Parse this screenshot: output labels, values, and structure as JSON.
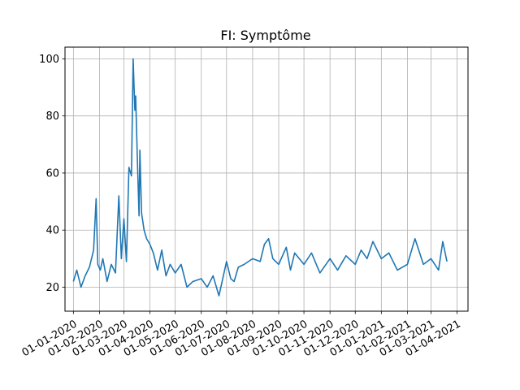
{
  "chart_data": {
    "type": "line",
    "title": "FI: Symptôme",
    "xlabel": "",
    "ylabel": "",
    "grid": true,
    "line_color": "#1f77b4",
    "x_ticks": [
      "01-01-2020",
      "01-02-2020",
      "01-03-2020",
      "01-04-2020",
      "01-05-2020",
      "01-06-2020",
      "01-07-2020",
      "01-08-2020",
      "01-09-2020",
      "01-10-2020",
      "01-11-2020",
      "01-12-2020",
      "01-01-2021",
      "01-02-2021",
      "01-03-2021",
      "01-04-2021"
    ],
    "y_ticks": [
      20,
      40,
      60,
      80,
      100
    ],
    "xlim": [
      "2019-12-22",
      "2021-04-14"
    ],
    "ylim": [
      11.6,
      104.1
    ],
    "series": [
      {
        "x": [
          "2020-01-01",
          "2020-01-05",
          "2020-01-10",
          "2020-01-15",
          "2020-01-20",
          "2020-01-25",
          "2020-01-28",
          "2020-01-30",
          "2020-02-02",
          "2020-02-05",
          "2020-02-10",
          "2020-02-15",
          "2020-02-20",
          "2020-02-24",
          "2020-02-27",
          "2020-03-01",
          "2020-03-04",
          "2020-03-07",
          "2020-03-10",
          "2020-03-12",
          "2020-03-14",
          "2020-03-15",
          "2020-03-17",
          "2020-03-19",
          "2020-03-20",
          "2020-03-22",
          "2020-03-25",
          "2020-03-28",
          "2020-04-01",
          "2020-04-05",
          "2020-04-10",
          "2020-04-15",
          "2020-04-20",
          "2020-04-25",
          "2020-05-01",
          "2020-05-08",
          "2020-05-15",
          "2020-05-22",
          "2020-06-01",
          "2020-06-08",
          "2020-06-15",
          "2020-06-22",
          "2020-07-01",
          "2020-07-06",
          "2020-07-10",
          "2020-07-15",
          "2020-07-22",
          "2020-08-01",
          "2020-08-10",
          "2020-08-15",
          "2020-08-20",
          "2020-08-25",
          "2020-09-01",
          "2020-09-10",
          "2020-09-15",
          "2020-09-20",
          "2020-10-01",
          "2020-10-10",
          "2020-10-20",
          "2020-11-01",
          "2020-11-10",
          "2020-11-20",
          "2020-12-01",
          "2020-12-08",
          "2020-12-15",
          "2020-12-22",
          "2021-01-01",
          "2021-01-10",
          "2021-01-20",
          "2021-02-01",
          "2021-02-10",
          "2021-02-20",
          "2021-03-01",
          "2021-03-10",
          "2021-03-15",
          "2021-03-20"
        ],
        "values": [
          22,
          26,
          20,
          24,
          27,
          33,
          51,
          28,
          26,
          30,
          22,
          28,
          25,
          52,
          30,
          44,
          29,
          62,
          59,
          100,
          82,
          87,
          65,
          45,
          68,
          46,
          40,
          37,
          35,
          32,
          26,
          33,
          24,
          28,
          25,
          28,
          20,
          22,
          23,
          20,
          24,
          17,
          29,
          23,
          22,
          27,
          28,
          30,
          29,
          35,
          37,
          30,
          28,
          34,
          26,
          32,
          28,
          32,
          25,
          30,
          26,
          31,
          28,
          33,
          30,
          36,
          30,
          32,
          26,
          28,
          37,
          28,
          30,
          26,
          36,
          29
        ]
      }
    ]
  }
}
